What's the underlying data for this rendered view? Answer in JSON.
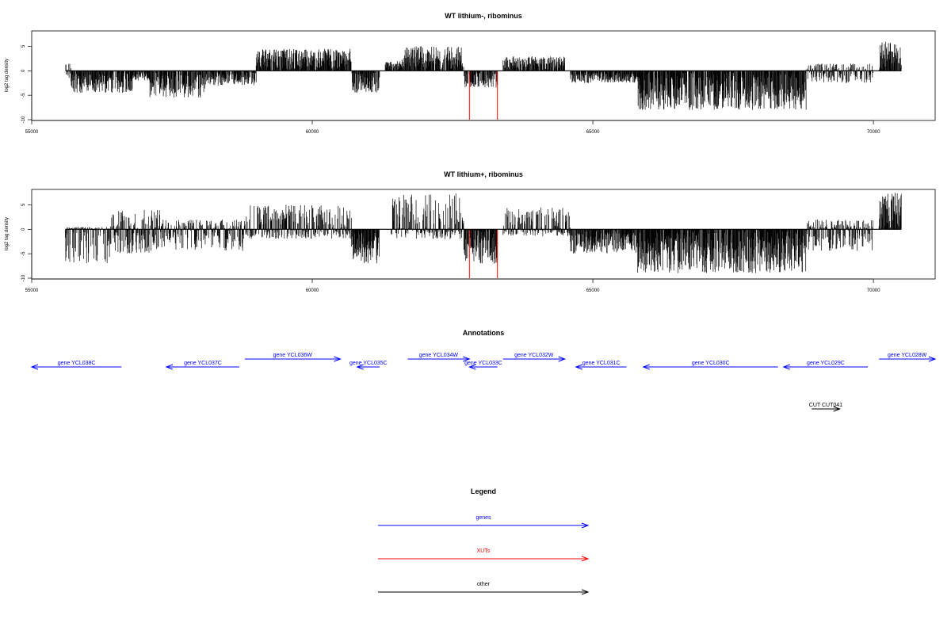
{
  "chart_data": [
    {
      "type": "bar",
      "title": "WT lithium-, ribominus",
      "xlabel": "",
      "ylabel": "log2 tag density",
      "xlim": [
        55000,
        71100
      ],
      "ylim": [
        -10,
        8
      ],
      "x_ticks": [
        "55000",
        "60000",
        "65000",
        "70000"
      ],
      "y_ticks": [
        "-10",
        "-5",
        "0",
        "5"
      ],
      "highlight_color": "#ff0000",
      "highlights": [
        {
          "x": 62800,
          "y": -10
        },
        {
          "x": 63300,
          "y": -10
        }
      ],
      "regions": [
        {
          "x_start": 55600,
          "x_end": 55700,
          "min": -1.5,
          "max": 1.5
        },
        {
          "x_start": 55700,
          "x_end": 56800,
          "min": -4.5,
          "max": 0
        },
        {
          "x_start": 56800,
          "x_end": 57100,
          "min": -2.0,
          "max": 0
        },
        {
          "x_start": 57100,
          "x_end": 58100,
          "min": -5.5,
          "max": 0
        },
        {
          "x_start": 58100,
          "x_end": 59000,
          "min": -3.0,
          "max": 0
        },
        {
          "x_start": 59000,
          "x_end": 60700,
          "min": 0,
          "max": 4.5
        },
        {
          "x_start": 60700,
          "x_end": 61200,
          "min": -4.5,
          "max": 0
        },
        {
          "x_start": 61300,
          "x_end": 61600,
          "min": 0,
          "max": 2.0
        },
        {
          "x_start": 61600,
          "x_end": 62700,
          "min": 0,
          "max": 5.0
        },
        {
          "x_start": 62700,
          "x_end": 63300,
          "min": -3.5,
          "max": 0
        },
        {
          "x_start": 63400,
          "x_end": 64500,
          "min": 0,
          "max": 3.0
        },
        {
          "x_start": 64600,
          "x_end": 65800,
          "min": -2.5,
          "max": 0
        },
        {
          "x_start": 65800,
          "x_end": 68800,
          "min": -8.0,
          "max": 0
        },
        {
          "x_start": 68800,
          "x_end": 70000,
          "min": -2.5,
          "max": 1.5
        },
        {
          "x_start": 70100,
          "x_end": 70500,
          "min": 0,
          "max": 6.0
        }
      ]
    },
    {
      "type": "bar",
      "title": "WT lithium+, ribominus",
      "xlabel": "",
      "ylabel": "log2 tag density",
      "xlim": [
        55000,
        71100
      ],
      "ylim": [
        -10,
        8
      ],
      "x_ticks": [
        "55000",
        "60000",
        "65000",
        "70000"
      ],
      "y_ticks": [
        "-10",
        "-5",
        "0",
        "5"
      ],
      "highlight_color": "#ff0000",
      "highlights": [
        {
          "x": 62800,
          "y": -10
        },
        {
          "x": 63300,
          "y": -10
        }
      ],
      "regions": [
        {
          "x_start": 55600,
          "x_end": 56400,
          "min": -7.0,
          "max": 0.5
        },
        {
          "x_start": 56400,
          "x_end": 57300,
          "min": -5.0,
          "max": 4.0
        },
        {
          "x_start": 57300,
          "x_end": 58800,
          "min": -4.5,
          "max": 2.0
        },
        {
          "x_start": 58800,
          "x_end": 60700,
          "min": -2.0,
          "max": 5.0
        },
        {
          "x_start": 60700,
          "x_end": 61200,
          "min": -7.0,
          "max": 0
        },
        {
          "x_start": 61400,
          "x_end": 62700,
          "min": -2.0,
          "max": 7.5
        },
        {
          "x_start": 62700,
          "x_end": 63300,
          "min": -7.0,
          "max": 0
        },
        {
          "x_start": 63400,
          "x_end": 64600,
          "min": -1.5,
          "max": 4.5
        },
        {
          "x_start": 64600,
          "x_end": 65800,
          "min": -5.0,
          "max": 0
        },
        {
          "x_start": 65800,
          "x_end": 68800,
          "min": -9.0,
          "max": 0
        },
        {
          "x_start": 68800,
          "x_end": 70000,
          "min": -4.5,
          "max": 2.0
        },
        {
          "x_start": 70100,
          "x_end": 70500,
          "min": 0,
          "max": 7.5
        }
      ]
    }
  ],
  "annotations": {
    "title": "Annotations",
    "gene_color": "#0000ff",
    "other_color": "#000000",
    "features": [
      {
        "label": "gene YCL038C",
        "kind": "gene",
        "strand": "-",
        "x_start": 55000,
        "x_end": 56600,
        "row": "lower"
      },
      {
        "label": "gene YCL037C",
        "kind": "gene",
        "strand": "-",
        "x_start": 57400,
        "x_end": 58700,
        "row": "lower"
      },
      {
        "label": "gene YCL036W",
        "kind": "gene",
        "strand": "+",
        "x_start": 58800,
        "x_end": 60500,
        "row": "upper"
      },
      {
        "label": "gene YCL035C",
        "kind": "gene",
        "strand": "-",
        "x_start": 60800,
        "x_end": 61200,
        "row": "lower"
      },
      {
        "label": "gene YCL034W",
        "kind": "gene",
        "strand": "+",
        "x_start": 61700,
        "x_end": 62800,
        "row": "upper"
      },
      {
        "label": "gene YCL033C",
        "kind": "gene",
        "strand": "-",
        "x_start": 62800,
        "x_end": 63300,
        "row": "lower"
      },
      {
        "label": "gene YCL032W",
        "kind": "gene",
        "strand": "+",
        "x_start": 63400,
        "x_end": 64500,
        "row": "upper"
      },
      {
        "label": "gene YCL031C",
        "kind": "gene",
        "strand": "-",
        "x_start": 64700,
        "x_end": 65600,
        "row": "lower"
      },
      {
        "label": "gene YCL030C",
        "kind": "gene",
        "strand": "-",
        "x_start": 65900,
        "x_end": 68300,
        "row": "lower"
      },
      {
        "label": "gene YCL029C",
        "kind": "gene",
        "strand": "-",
        "x_start": 68400,
        "x_end": 69900,
        "row": "lower"
      },
      {
        "label": "gene YCL028W",
        "kind": "gene",
        "strand": "+",
        "x_start": 70100,
        "x_end": 71100,
        "row": "upper"
      },
      {
        "label": "CUT CUT041",
        "kind": "other",
        "strand": "+",
        "x_start": 68900,
        "x_end": 69400,
        "row": "cut"
      }
    ]
  },
  "legend": {
    "title": "Legend",
    "items": [
      {
        "label": "genes",
        "color": "#0000ff"
      },
      {
        "label": "XUTs",
        "color": "#ff0000"
      },
      {
        "label": "other",
        "color": "#000000"
      }
    ]
  }
}
